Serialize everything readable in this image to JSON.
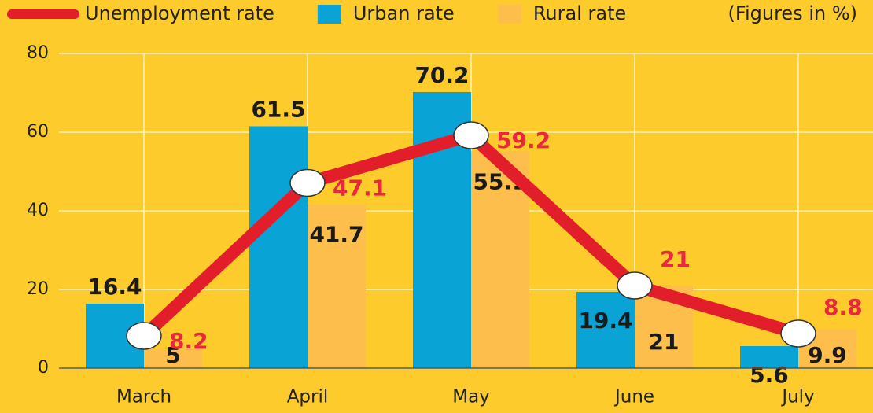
{
  "chart_data": {
    "type": "bar",
    "note": "(Figures in %)",
    "categories": [
      "March",
      "April",
      "May",
      "June",
      "July"
    ],
    "series": [
      {
        "name": "Unemployment rate",
        "type": "line",
        "color": "#e31e2b",
        "values": [
          8.2,
          47.1,
          59.2,
          21,
          8.8
        ]
      },
      {
        "name": "Urban rate",
        "type": "bar",
        "color": "#0aa3d6",
        "values": [
          16.4,
          61.5,
          70.2,
          19.4,
          5.6
        ]
      },
      {
        "name": "Rural rate",
        "type": "bar",
        "color": "#fdbe4c",
        "values": [
          5,
          41.7,
          55.1,
          21,
          9.9
        ]
      }
    ],
    "ylim": [
      0,
      80
    ],
    "yticks": [
      0,
      20,
      40,
      60,
      80
    ],
    "grid": true
  }
}
